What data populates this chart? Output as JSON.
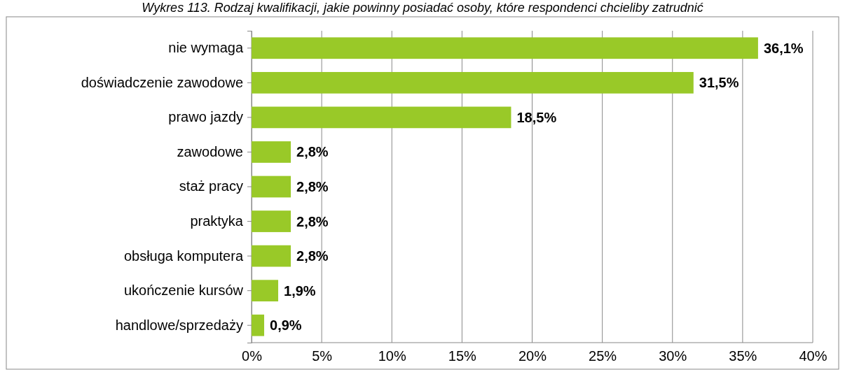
{
  "chart_data": {
    "type": "bar",
    "orientation": "horizontal",
    "title": "Wykres 113. Rodzaj kwalifikacji, jakie powinny posiadać osoby, które respondenci chcieliby zatrudnić",
    "categories": [
      "nie wymaga",
      "doświadczenie zawodowe",
      "prawo jazdy",
      "zawodowe",
      "staż pracy",
      "praktyka",
      "obsługa komputera",
      "ukończenie kursów",
      "handlowe/sprzedaży"
    ],
    "values": [
      36.1,
      31.5,
      18.5,
      2.8,
      2.8,
      2.8,
      2.8,
      1.9,
      0.9
    ],
    "value_labels": [
      "36,1%",
      "31,5%",
      "18,5%",
      "2,8%",
      "2,8%",
      "2,8%",
      "2,8%",
      "1,9%",
      "0,9%"
    ],
    "color": "#99c928",
    "xlim": [
      0,
      40
    ],
    "xticks": [
      {
        "value": 0,
        "label": "0%"
      },
      {
        "value": 5,
        "label": "5%"
      },
      {
        "value": 10,
        "label": "10%"
      },
      {
        "value": 15,
        "label": "15%"
      },
      {
        "value": 20,
        "label": "20%"
      },
      {
        "value": 25,
        "label": "25%"
      },
      {
        "value": 30,
        "label": "30%"
      },
      {
        "value": 35,
        "label": "35%"
      },
      {
        "value": 40,
        "label": "40%"
      }
    ],
    "grid": "x"
  }
}
